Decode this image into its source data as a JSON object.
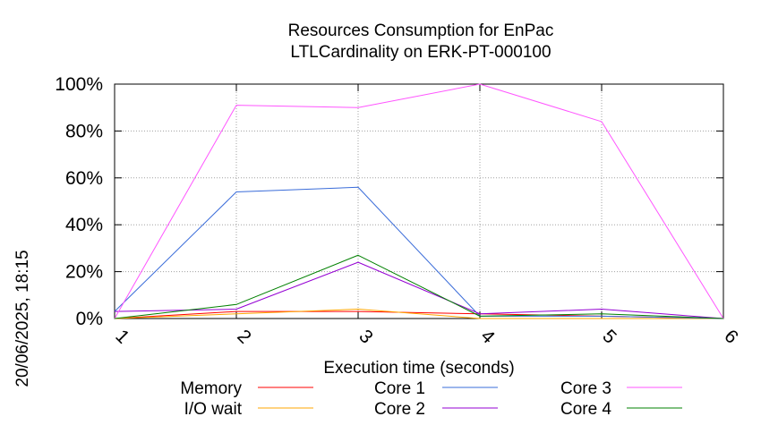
{
  "chart_data": {
    "type": "line",
    "title": "Resources Consumption for EnPac",
    "subtitle": "LTLCardinality on ERK-PT-000100",
    "xlabel": "Execution time (seconds)",
    "ylabel": "",
    "timestamp": "20/06/2025, 18:15",
    "x": [
      1,
      2,
      3,
      4,
      5,
      6
    ],
    "xlim": [
      1,
      6
    ],
    "ylim": [
      0,
      100
    ],
    "x_ticks": [
      "1",
      "2",
      "3",
      "4",
      "5",
      "6"
    ],
    "y_ticks": [
      "0%",
      "20%",
      "40%",
      "60%",
      "80%",
      "100%"
    ],
    "y_tick_values": [
      0,
      20,
      40,
      60,
      80,
      100
    ],
    "grid": true,
    "legend_position": "bottom",
    "series": [
      {
        "name": "Memory",
        "color": "#ff0000",
        "values": [
          0,
          3,
          3,
          2,
          1,
          0
        ]
      },
      {
        "name": "I/O wait",
        "color": "#ffa500",
        "values": [
          0,
          2,
          4,
          0,
          0,
          0
        ]
      },
      {
        "name": "Core 1",
        "color": "#3a6cd9",
        "values": [
          3,
          54,
          56,
          1,
          1,
          0
        ]
      },
      {
        "name": "Core 2",
        "color": "#9400d3",
        "values": [
          3,
          4,
          24,
          2,
          4,
          0
        ]
      },
      {
        "name": "Core 3",
        "color": "#ff55ff",
        "values": [
          0,
          91,
          90,
          100,
          84,
          0
        ]
      },
      {
        "name": "Core 4",
        "color": "#008000",
        "values": [
          0,
          6,
          27,
          1,
          2,
          0
        ]
      }
    ]
  }
}
